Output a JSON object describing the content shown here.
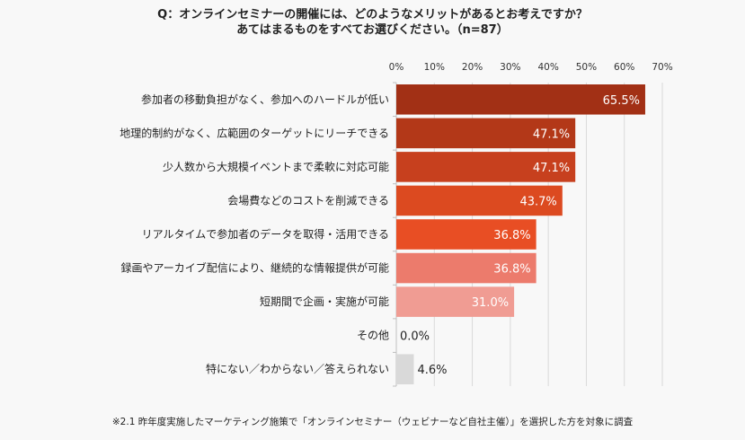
{
  "chart_data": {
    "type": "bar",
    "orientation": "horizontal",
    "title": "Q：オンラインセミナーの開催には、どのようなメリットがあるとお考えですか？",
    "subtitle": "あてはまるものをすべてお選びください。（n=87）",
    "categories": [
      "参加者の移動負担がなく、参加へのハードルが低い",
      "地理的制約がなく、広範囲のターゲットにリーチできる",
      "少人数から大規模イベントまで柔軟に対応可能",
      "会場費などのコストを削減できる",
      "リアルタイムで参加者のデータを取得・活用できる",
      "録画やアーカイブ配信により、継続的な情報提供が可能",
      "短期間で企画・実施が可能",
      "その他",
      "特にない／わからない／答えられない"
    ],
    "values": [
      65.5,
      47.1,
      47.1,
      43.7,
      36.8,
      36.8,
      31.0,
      0.0,
      4.6
    ],
    "data_labels": [
      "65.5%",
      "47.1%",
      "47.1%",
      "43.7%",
      "36.8%",
      "36.8%",
      "31.0%",
      "0.0%",
      "4.6%"
    ],
    "colors": [
      "#a23015",
      "#b33818",
      "#c7401e",
      "#dc4a20",
      "#e84e24",
      "#ec7b6c",
      "#f09c93",
      "#f09c93",
      "#d9d9d9"
    ],
    "xlim": [
      0,
      70
    ],
    "x_ticks": [
      "0%",
      "10%",
      "20%",
      "30%",
      "40%",
      "50%",
      "60%",
      "70%"
    ],
    "axis_position": "top",
    "grid": true,
    "footnote": "※2.1 昨年度実施したマーケティング施策で「オンラインセミナー（ウェビナーなど自社主催）」を選択した方を対象に調査"
  }
}
